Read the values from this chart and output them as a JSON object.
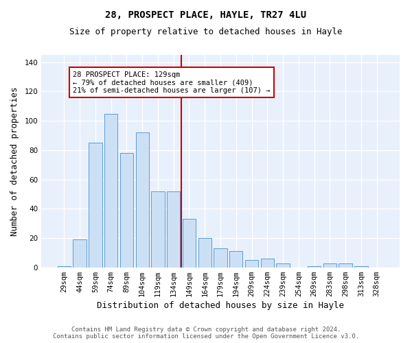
{
  "title_line1": "28, PROSPECT PLACE, HAYLE, TR27 4LU",
  "title_line2": "Size of property relative to detached houses in Hayle",
  "xlabel": "Distribution of detached houses by size in Hayle",
  "ylabel": "Number of detached properties",
  "categories": [
    "29sqm",
    "44sqm",
    "59sqm",
    "74sqm",
    "89sqm",
    "104sqm",
    "119sqm",
    "134sqm",
    "149sqm",
    "164sqm",
    "179sqm",
    "194sqm",
    "209sqm",
    "224sqm",
    "239sqm",
    "254sqm",
    "269sqm",
    "283sqm",
    "298sqm",
    "313sqm",
    "328sqm"
  ],
  "values": [
    1,
    19,
    85,
    105,
    78,
    92,
    52,
    52,
    33,
    20,
    13,
    11,
    5,
    6,
    3,
    0,
    1,
    3,
    3,
    1,
    0
  ],
  "bar_color": "#cce0f5",
  "bar_edge_color": "#5b9bd5",
  "bar_width": 0.85,
  "vline_x": 7.5,
  "vline_color": "#cc0000",
  "annotation_line1": "28 PROSPECT PLACE: 129sqm",
  "annotation_line2": "← 79% of detached houses are smaller (409)",
  "annotation_line3": "21% of semi-detached houses are larger (107) →",
  "annotation_box_color": "#ffffff",
  "annotation_box_edge_color": "#cc0000",
  "ylim": [
    0,
    145
  ],
  "yticks": [
    0,
    20,
    40,
    60,
    80,
    100,
    120,
    140
  ],
  "background_color": "#e8f0fb",
  "grid_color": "#ffffff",
  "footer_line1": "Contains HM Land Registry data © Crown copyright and database right 2024.",
  "footer_line2": "Contains public sector information licensed under the Open Government Licence v3.0.",
  "title_fontsize": 10,
  "subtitle_fontsize": 9,
  "label_fontsize": 9,
  "tick_fontsize": 7.5,
  "annotation_fontsize": 7.5,
  "footer_fontsize": 6.5
}
